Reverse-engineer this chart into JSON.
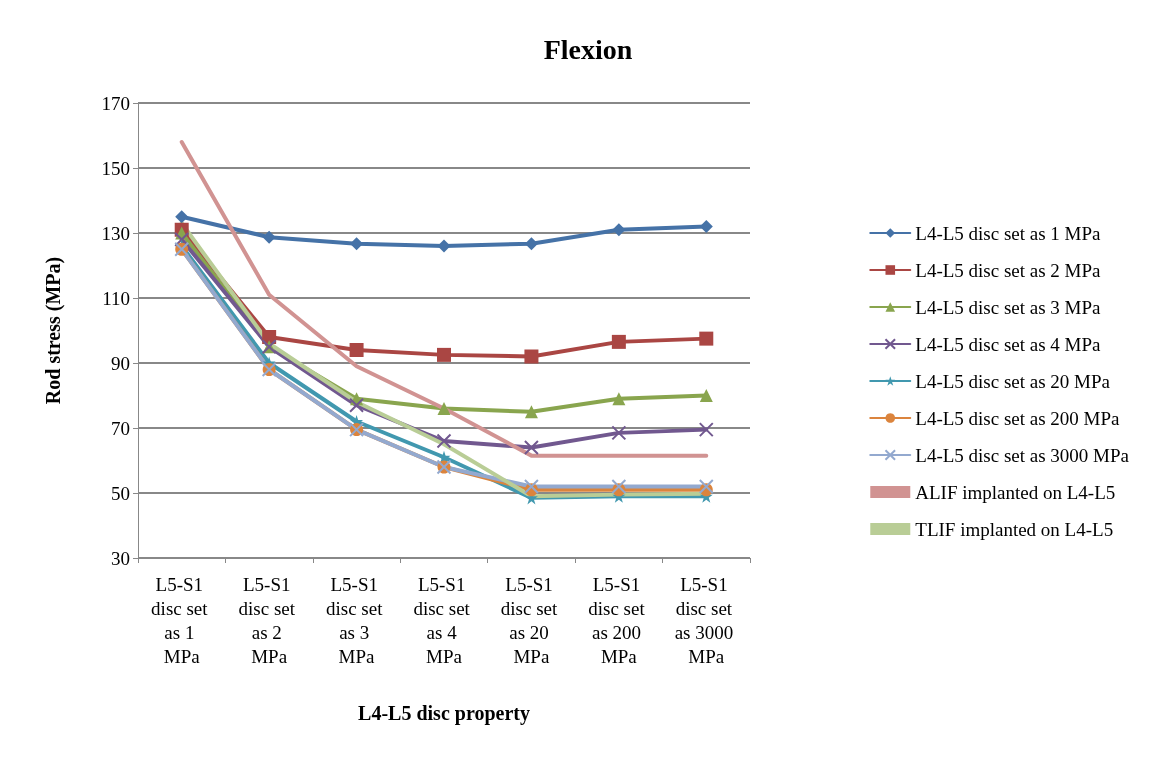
{
  "chart_data": {
    "type": "line",
    "title": "Flexion",
    "xlabel": "L4-L5 disc property",
    "ylabel": "Rod stress (MPa)",
    "categories": [
      "L5-S1 disc set as 1 MPa",
      "L5-S1 disc set as 2 MPa",
      "L5-S1 disc set as 3 MPa",
      "L5-S1 disc set as 4 MPa",
      "L5-S1 disc set as 20 MPa",
      "L5-S1 disc set as 200 MPa",
      "L5-S1 disc set as 3000 MPa"
    ],
    "series": [
      {
        "name": "L4-L5 disc set as 1 MPa",
        "color": "#4572a7",
        "marker": "diamond",
        "values": [
          135,
          128.7,
          126.7,
          126,
          126.7,
          131,
          132
        ]
      },
      {
        "name": "L4-L5 disc set as 2 MPa",
        "color": "#aa4643",
        "marker": "square",
        "values": [
          131,
          98,
          94,
          92.5,
          92,
          96.5,
          97.5
        ]
      },
      {
        "name": "L4-L5 disc set as 3 MPa",
        "color": "#89a54e",
        "marker": "triangle",
        "values": [
          130,
          95,
          79,
          76,
          75,
          79,
          80
        ]
      },
      {
        "name": "L4-L5 disc set as 4 MPa",
        "color": "#71588f",
        "marker": "cross",
        "values": [
          128,
          95,
          77,
          66,
          64,
          68.5,
          69.5
        ]
      },
      {
        "name": "L4-L5 disc set as 20 MPa",
        "color": "#4198af",
        "marker": "star",
        "values": [
          126,
          90,
          72,
          61,
          48.5,
          49,
          49
        ]
      },
      {
        "name": "L4-L5 disc set as 200 MPa",
        "color": "#db843d",
        "marker": "circle",
        "values": [
          125,
          88,
          69.5,
          58,
          51,
          51,
          51
        ]
      },
      {
        "name": "L4-L5 disc set as 3000 MPa",
        "color": "#93a9cf",
        "marker": "cross",
        "values": [
          125,
          88,
          69.5,
          58,
          52,
          52,
          52
        ]
      },
      {
        "name": "ALIF implanted on L4-L5",
        "color": "#d19392",
        "marker": "none",
        "values": [
          158,
          111,
          89,
          76,
          61.5,
          61.5,
          61.5
        ]
      },
      {
        "name": "TLIF implanted on L4-L5",
        "color": "#b9cd96",
        "marker": "none",
        "values": [
          133,
          96,
          78,
          65,
          49,
          49.5,
          49.8
        ]
      }
    ],
    "ylim": [
      30,
      170
    ],
    "yticks": [
      30,
      50,
      70,
      90,
      110,
      130,
      150,
      170
    ],
    "grid": "y",
    "legend": "right",
    "line_style": "solid"
  }
}
